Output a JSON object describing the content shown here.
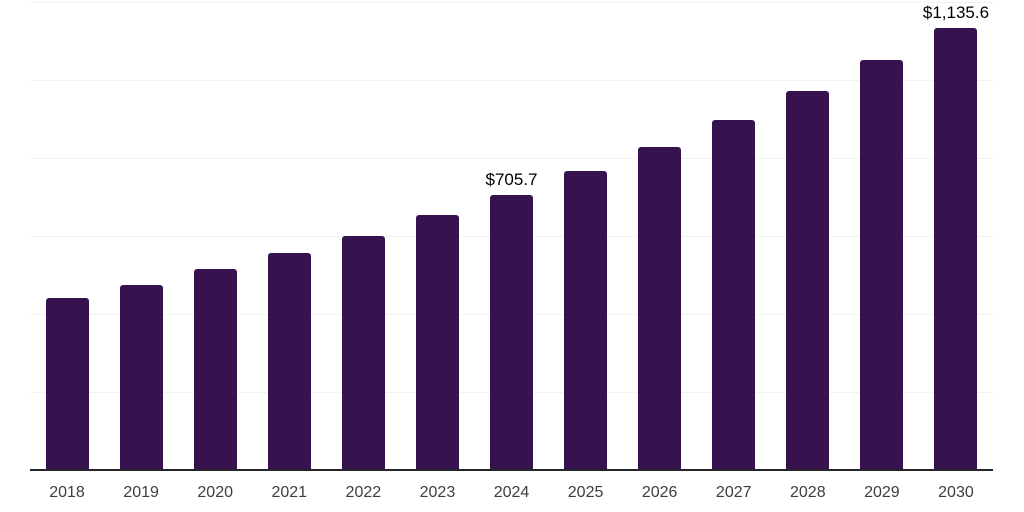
{
  "chart_data": {
    "type": "bar",
    "title": "",
    "xlabel": "",
    "ylabel": "",
    "categories": [
      "2018",
      "2019",
      "2020",
      "2021",
      "2022",
      "2023",
      "2024",
      "2025",
      "2026",
      "2027",
      "2028",
      "2029",
      "2030"
    ],
    "values": [
      441,
      475,
      516,
      557,
      601,
      655,
      705.7,
      767,
      829,
      898,
      973,
      1052,
      1135.6
    ],
    "value_labels": {
      "2024": "$705.7",
      "2030": "$1,135.6"
    },
    "ylim": [
      0,
      1200
    ],
    "grid_step": 200,
    "grid": "horizontal",
    "legend_position": "none",
    "y_tick_labels_visible": false,
    "colors": {
      "bar": "#36124e",
      "axis_line": "#262626",
      "gridline": "#f2f2f2",
      "value_label": "#000000",
      "tick_label": "#3d3d3d",
      "background": "#ffffff"
    }
  }
}
